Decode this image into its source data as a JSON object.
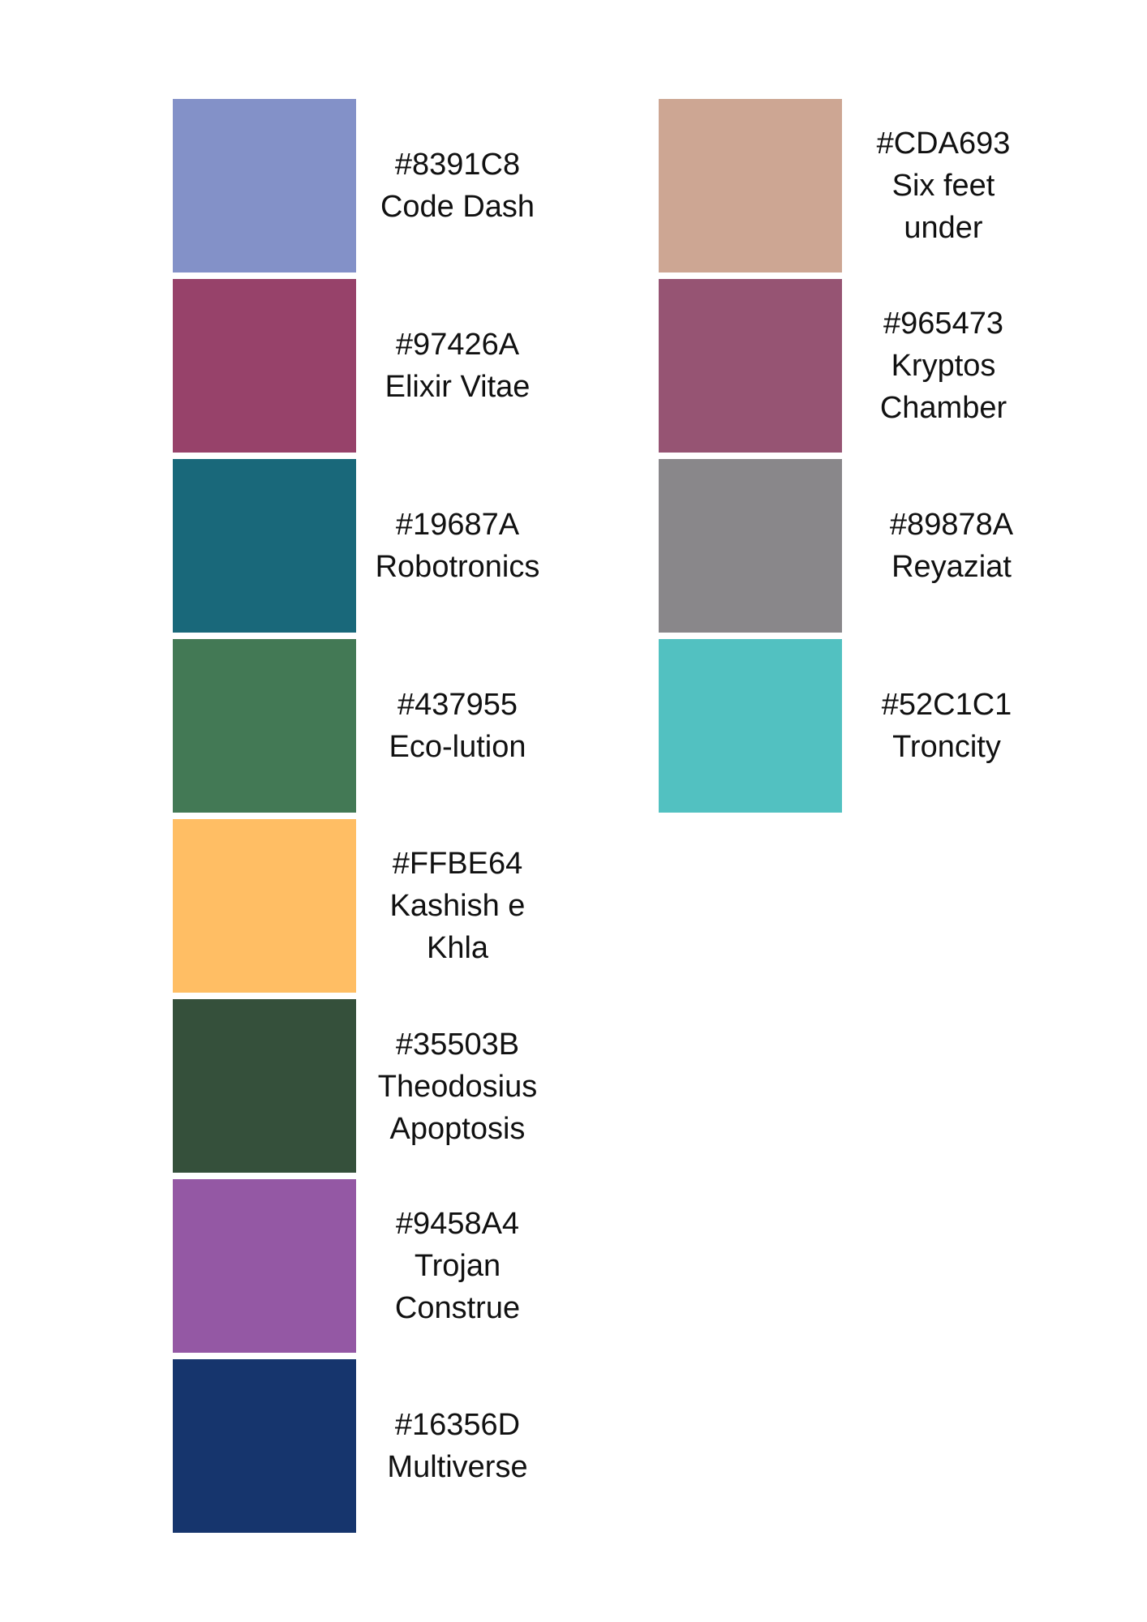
{
  "palette": {
    "left": [
      {
        "hex": "#8391C8",
        "name_lines": [
          "Code Dash"
        ],
        "color": "#8391C8"
      },
      {
        "hex": "#97426A",
        "name_lines": [
          "Elixir Vitae"
        ],
        "color": "#97426A"
      },
      {
        "hex": "#19687A",
        "name_lines": [
          "Robotronics"
        ],
        "color": "#19687A"
      },
      {
        "hex": "#437955",
        "name_lines": [
          "Eco-lution"
        ],
        "color": "#437955"
      },
      {
        "hex": "#FFBE64",
        "name_lines": [
          "Kashish e",
          "Khla"
        ],
        "color": "#FFBE64"
      },
      {
        "hex": "#35503B",
        "name_lines": [
          "Theodosius",
          "Apoptosis"
        ],
        "color": "#35503B"
      },
      {
        "hex": "#9458A4",
        "name_lines": [
          "Trojan",
          "Construe"
        ],
        "color": "#9458A4"
      },
      {
        "hex": "#16356D",
        "name_lines": [
          "Multiverse"
        ],
        "color": "#16356D"
      }
    ],
    "right": [
      {
        "hex": "#CDA693",
        "name_lines": [
          "Six feet",
          "under"
        ],
        "color": "#CDA693"
      },
      {
        "hex": "#965473",
        "name_lines": [
          "Kryptos",
          "Chamber"
        ],
        "color": "#965473"
      },
      {
        "hex": "#89878A",
        "name_lines": [
          "Reyaziat"
        ],
        "color": "#89878A"
      },
      {
        "hex": "#52C1C1",
        "name_lines": [
          "Troncity"
        ],
        "color": "#52C1C1"
      }
    ]
  }
}
